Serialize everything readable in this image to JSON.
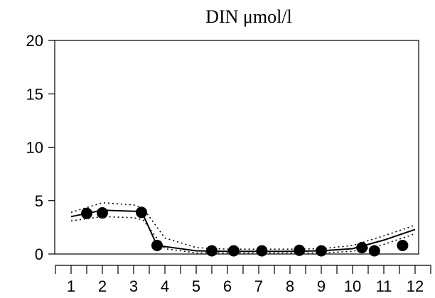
{
  "chart_data": {
    "type": "scatter",
    "title": "DIN    μmol/l",
    "xlabel": "",
    "ylabel": "",
    "xlim": [
      0.5,
      12.5
    ],
    "ylim": [
      0,
      20
    ],
    "x_ticks": [
      "1",
      "2",
      "3",
      "4",
      "5",
      "6",
      "7",
      "8",
      "9",
      "10",
      "11",
      "12"
    ],
    "y_ticks": [
      "0",
      "5",
      "10",
      "15",
      "20"
    ],
    "grid": false,
    "series": [
      {
        "kind": "points",
        "points": [
          {
            "x": 1.5,
            "y": 3.8
          },
          {
            "x": 2.0,
            "y": 3.85
          },
          {
            "x": 3.25,
            "y": 3.9
          },
          {
            "x": 3.75,
            "y": 0.8
          },
          {
            "x": 5.5,
            "y": 0.3
          },
          {
            "x": 6.2,
            "y": 0.3
          },
          {
            "x": 7.1,
            "y": 0.3
          },
          {
            "x": 8.3,
            "y": 0.35
          },
          {
            "x": 9.0,
            "y": 0.3
          },
          {
            "x": 10.3,
            "y": 0.6
          },
          {
            "x": 10.7,
            "y": 0.3
          },
          {
            "x": 11.6,
            "y": 0.8
          }
        ]
      },
      {
        "kind": "fit",
        "points": [
          {
            "x": 1.0,
            "y": 3.5
          },
          {
            "x": 1.5,
            "y": 3.8
          },
          {
            "x": 2.0,
            "y": 4.1
          },
          {
            "x": 3.0,
            "y": 4.0
          },
          {
            "x": 3.25,
            "y": 4.0
          },
          {
            "x": 3.75,
            "y": 0.8
          },
          {
            "x": 5.0,
            "y": 0.3
          },
          {
            "x": 6.0,
            "y": 0.25
          },
          {
            "x": 7.0,
            "y": 0.25
          },
          {
            "x": 8.0,
            "y": 0.25
          },
          {
            "x": 9.0,
            "y": 0.3
          },
          {
            "x": 10.0,
            "y": 0.5
          },
          {
            "x": 11.0,
            "y": 1.3
          },
          {
            "x": 12.0,
            "y": 2.3
          }
        ]
      },
      {
        "kind": "upper_bound",
        "points": [
          {
            "x": 1.0,
            "y": 3.9
          },
          {
            "x": 2.0,
            "y": 4.8
          },
          {
            "x": 3.0,
            "y": 4.6
          },
          {
            "x": 3.3,
            "y": 4.3
          },
          {
            "x": 4.0,
            "y": 1.5
          },
          {
            "x": 5.0,
            "y": 0.6
          },
          {
            "x": 6.0,
            "y": 0.45
          },
          {
            "x": 7.0,
            "y": 0.45
          },
          {
            "x": 8.0,
            "y": 0.45
          },
          {
            "x": 9.0,
            "y": 0.5
          },
          {
            "x": 10.0,
            "y": 0.8
          },
          {
            "x": 11.0,
            "y": 1.7
          },
          {
            "x": 12.0,
            "y": 2.7
          }
        ]
      },
      {
        "kind": "lower_bound",
        "points": [
          {
            "x": 1.0,
            "y": 3.1
          },
          {
            "x": 2.0,
            "y": 3.5
          },
          {
            "x": 3.0,
            "y": 3.4
          },
          {
            "x": 3.3,
            "y": 3.2
          },
          {
            "x": 4.0,
            "y": 0.5
          },
          {
            "x": 5.0,
            "y": 0.1
          },
          {
            "x": 6.0,
            "y": 0.1
          },
          {
            "x": 7.0,
            "y": 0.1
          },
          {
            "x": 8.0,
            "y": 0.1
          },
          {
            "x": 9.0,
            "y": 0.1
          },
          {
            "x": 10.0,
            "y": 0.25
          },
          {
            "x": 11.0,
            "y": 0.9
          },
          {
            "x": 12.0,
            "y": 1.9
          }
        ]
      }
    ]
  }
}
